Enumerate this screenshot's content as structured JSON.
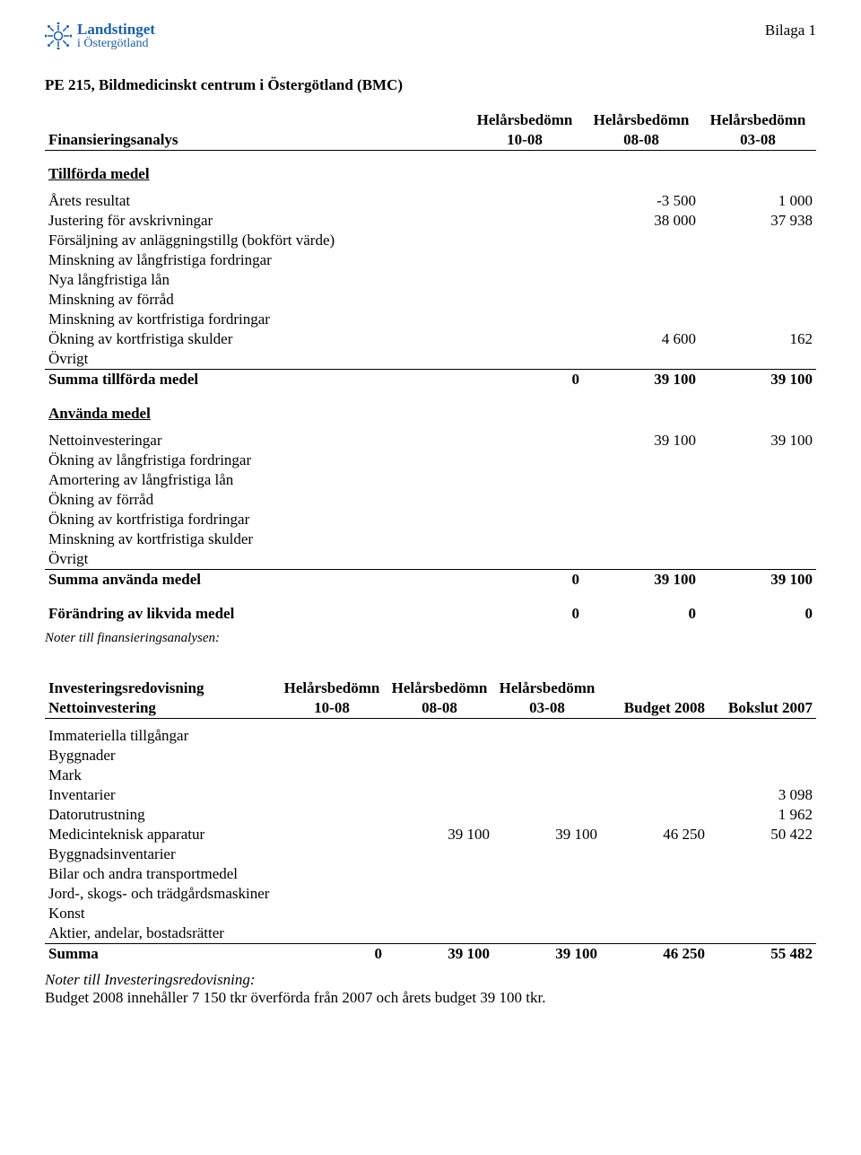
{
  "header": {
    "bilaga": "Bilaga 1",
    "logo_line1": "Landstinget",
    "logo_line2": "i Östergötland",
    "logo_color": "#1b5fa6"
  },
  "doc_title": "PE 215, Bildmedicinskt centrum i Östergötland (BMC)",
  "fin": {
    "row_title": "Finansieringsanalys",
    "col_top": "Helårsbedömn",
    "col1": "10-08",
    "col2": "08-08",
    "col3": "03-08",
    "sec_tillforda": "Tillförda medel",
    "rows_tillforda": [
      {
        "label": "Årets resultat",
        "c1": "",
        "c2": "-3 500",
        "c3": "1 000"
      },
      {
        "label": "Justering för avskrivningar",
        "c1": "",
        "c2": "38 000",
        "c3": "37 938"
      },
      {
        "label": "Försäljning av anläggningstillg (bokfört värde)",
        "c1": "",
        "c2": "",
        "c3": ""
      },
      {
        "label": "Minskning av långfristiga fordringar",
        "c1": "",
        "c2": "",
        "c3": ""
      },
      {
        "label": "Nya långfristiga lån",
        "c1": "",
        "c2": "",
        "c3": ""
      },
      {
        "label": "Minskning av förråd",
        "c1": "",
        "c2": "",
        "c3": ""
      },
      {
        "label": "Minskning av kortfristiga fordringar",
        "c1": "",
        "c2": "",
        "c3": ""
      },
      {
        "label": "Ökning av kortfristiga skulder",
        "c1": "",
        "c2": "4 600",
        "c3": "162"
      },
      {
        "label": "Övrigt",
        "c1": "",
        "c2": "",
        "c3": ""
      }
    ],
    "sum_tillforda": {
      "label": "Summa tillförda medel",
      "c1": "0",
      "c2": "39 100",
      "c3": "39 100"
    },
    "sec_anvanda": "Använda medel",
    "rows_anvanda": [
      {
        "label": "Nettoinvesteringar",
        "c1": "",
        "c2": "39 100",
        "c3": "39 100"
      },
      {
        "label": "Ökning av långfristiga fordringar",
        "c1": "",
        "c2": "",
        "c3": ""
      },
      {
        "label": "Amortering av långfristiga lån",
        "c1": "",
        "c2": "",
        "c3": ""
      },
      {
        "label": "Ökning av förråd",
        "c1": "",
        "c2": "",
        "c3": ""
      },
      {
        "label": "Ökning av kortfristiga fordringar",
        "c1": "",
        "c2": "",
        "c3": ""
      },
      {
        "label": "Minskning av kortfristiga skulder",
        "c1": "",
        "c2": "",
        "c3": ""
      },
      {
        "label": "Övrigt",
        "c1": "",
        "c2": "",
        "c3": ""
      }
    ],
    "sum_anvanda": {
      "label": "Summa använda medel",
      "c1": "0",
      "c2": "39 100",
      "c3": "39 100"
    },
    "forandring": {
      "label": "Förändring av likvida medel",
      "c1": "0",
      "c2": "0",
      "c3": "0"
    },
    "noter": "Noter till finansieringsanalysen:"
  },
  "inv": {
    "title": "Investeringsredovisning",
    "row_title": "Nettoinvestering",
    "col_top": "Helårsbedömn",
    "col1": "10-08",
    "col2": "08-08",
    "col3": "03-08",
    "col4": "Budget 2008",
    "col5": "Bokslut 2007",
    "rows": [
      {
        "label": "Immateriella tillgångar",
        "c1": "",
        "c2": "",
        "c3": "",
        "c4": "",
        "c5": ""
      },
      {
        "label": "Byggnader",
        "c1": "",
        "c2": "",
        "c3": "",
        "c4": "",
        "c5": ""
      },
      {
        "label": "Mark",
        "c1": "",
        "c2": "",
        "c3": "",
        "c4": "",
        "c5": ""
      },
      {
        "label": "Inventarier",
        "c1": "",
        "c2": "",
        "c3": "",
        "c4": "",
        "c5": "3 098"
      },
      {
        "label": "Datorutrustning",
        "c1": "",
        "c2": "",
        "c3": "",
        "c4": "",
        "c5": "1 962"
      },
      {
        "label": "Medicinteknisk apparatur",
        "c1": "",
        "c2": "39 100",
        "c3": "39 100",
        "c4": "46 250",
        "c5": "50 422"
      },
      {
        "label": "Byggnadsinventarier",
        "c1": "",
        "c2": "",
        "c3": "",
        "c4": "",
        "c5": ""
      },
      {
        "label": "Bilar och andra transportmedel",
        "c1": "",
        "c2": "",
        "c3": "",
        "c4": "",
        "c5": ""
      },
      {
        "label": "Jord-, skogs- och trädgårdsmaskiner",
        "c1": "",
        "c2": "",
        "c3": "",
        "c4": "",
        "c5": ""
      },
      {
        "label": "Konst",
        "c1": "",
        "c2": "",
        "c3": "",
        "c4": "",
        "c5": ""
      },
      {
        "label": "Aktier, andelar, bostadsrätter",
        "c1": "",
        "c2": "",
        "c3": "",
        "c4": "",
        "c5": ""
      }
    ],
    "sum": {
      "label": "Summa",
      "c1": "0",
      "c2": "39 100",
      "c3": "39 100",
      "c4": "46 250",
      "c5": "55 482"
    },
    "noter_title": "Noter till Investeringsredovisning:",
    "noter_text": "Budget 2008 innehåller 7 150 tkr överförda från 2007 och årets budget 39 100 tkr."
  }
}
